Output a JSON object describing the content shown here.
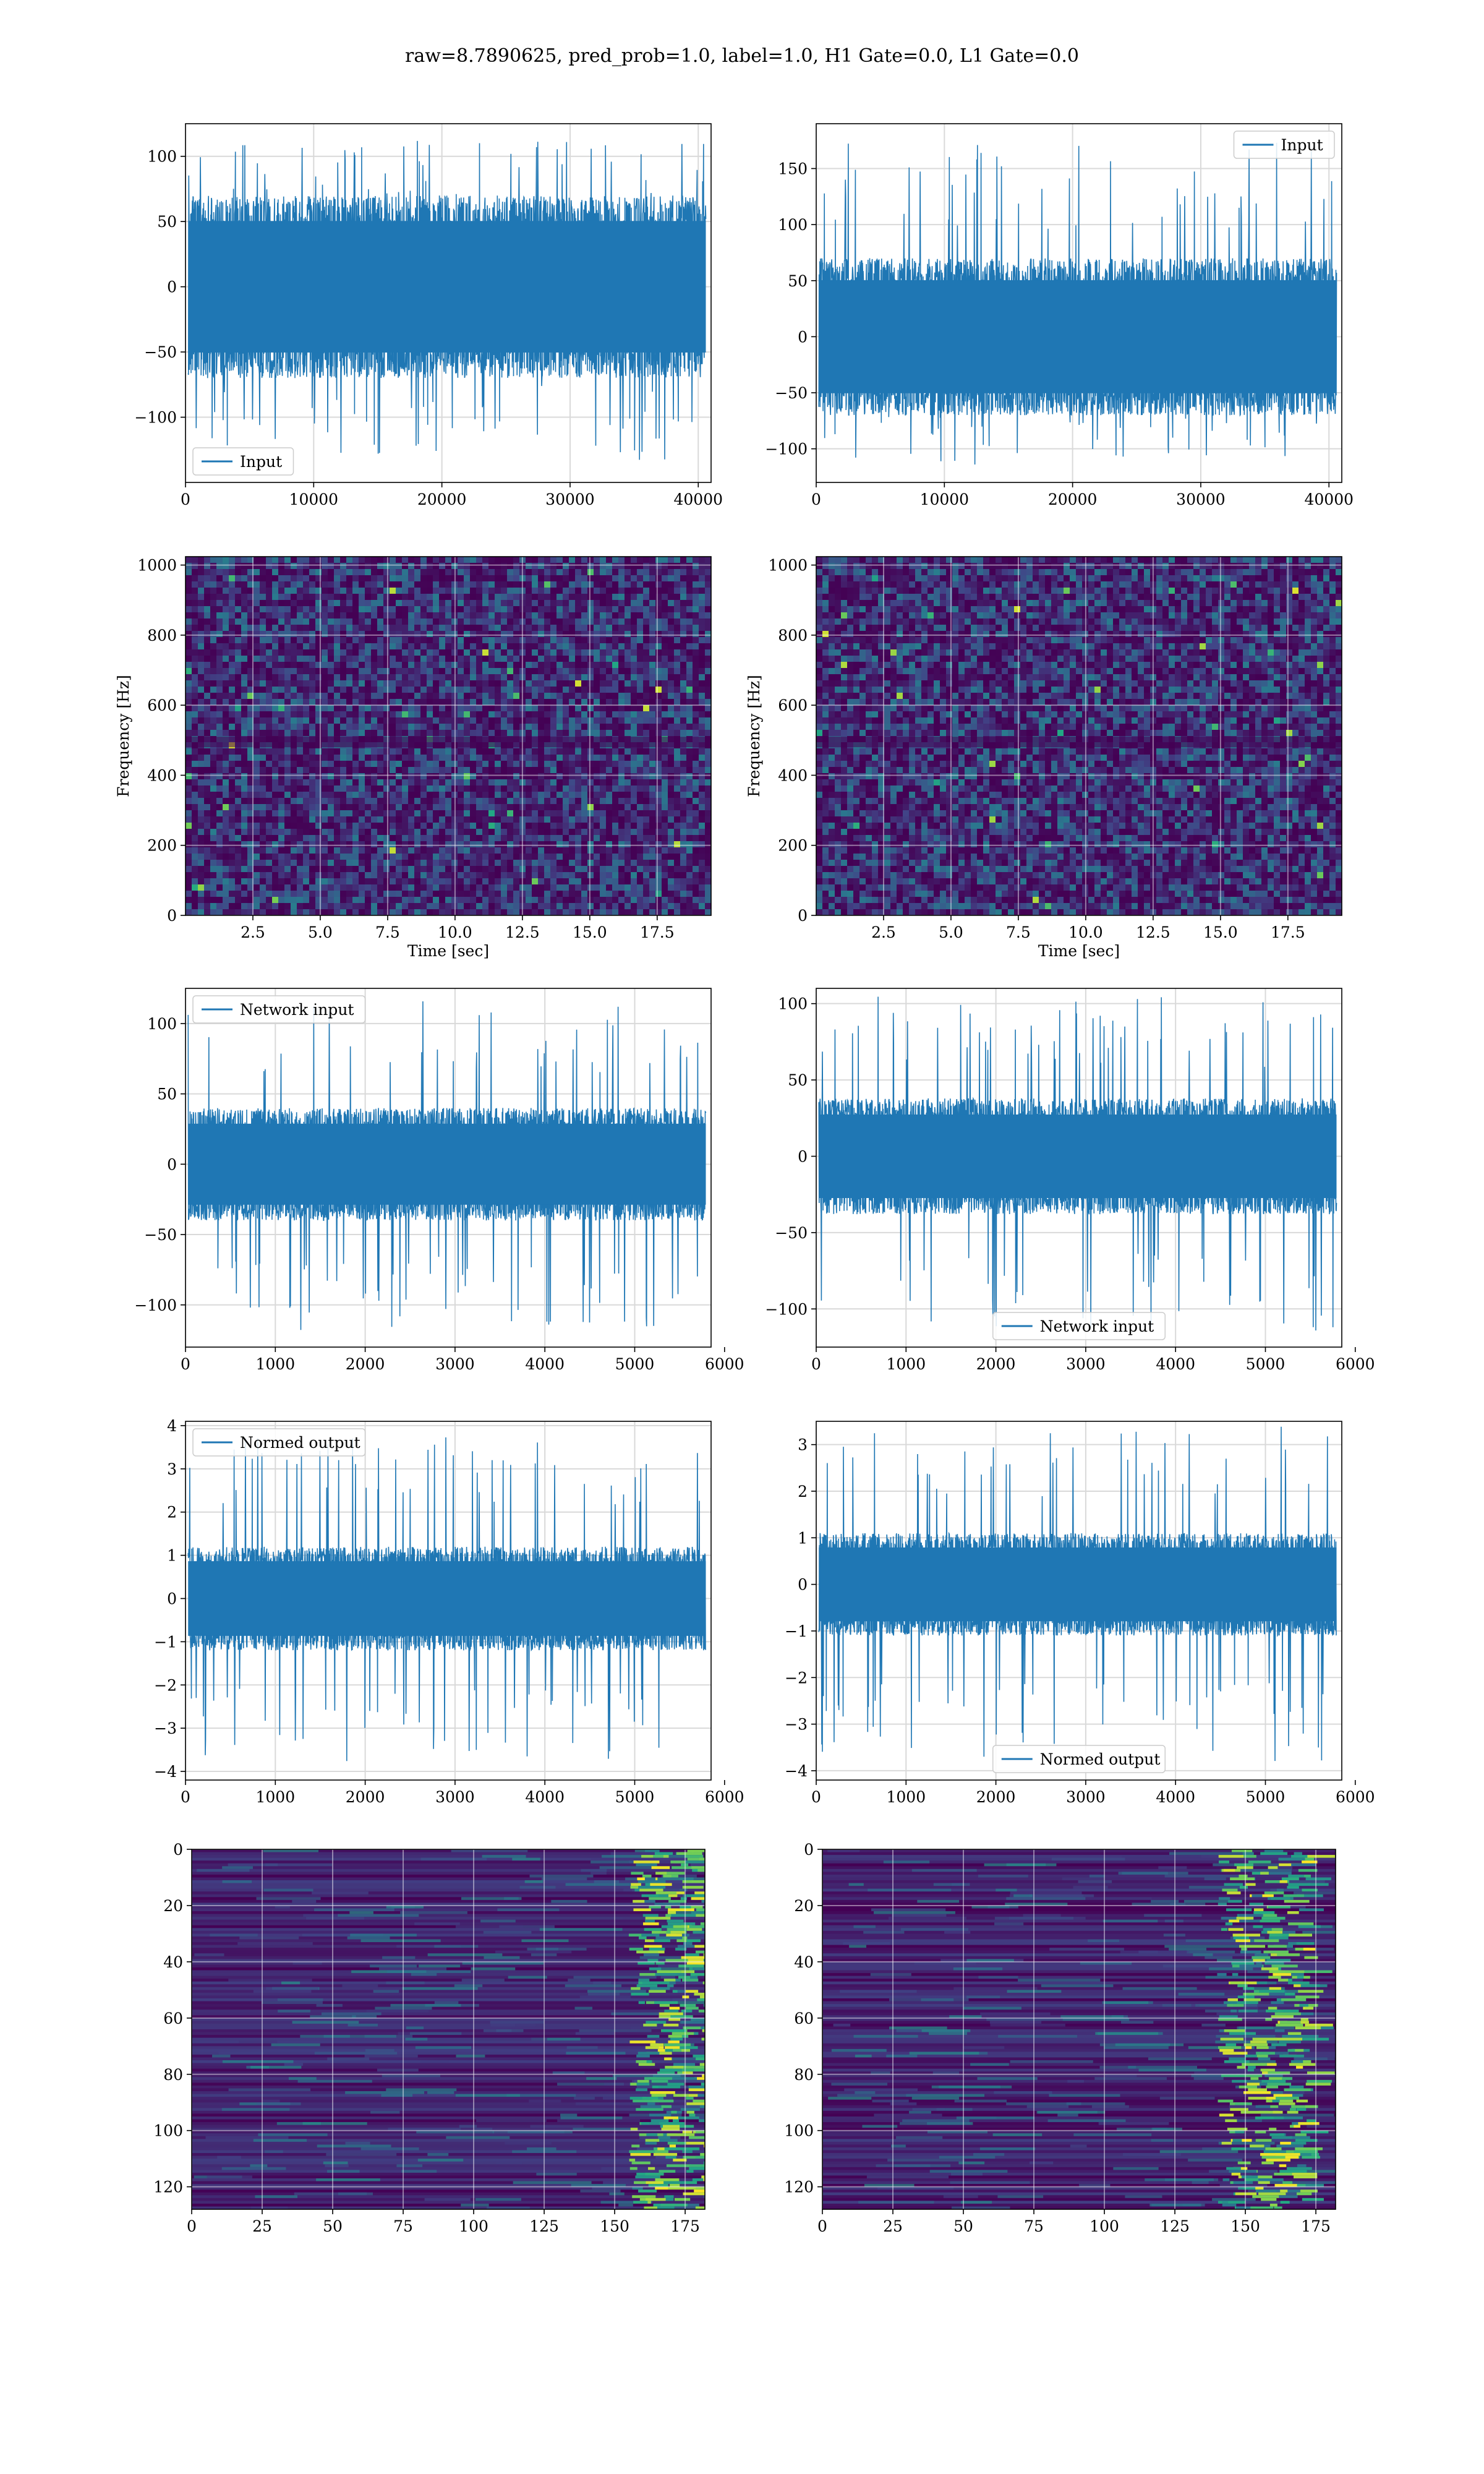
{
  "figure": {
    "suptitle": "raw=8.7890625, pred_prob=1.0, label=1.0, H1 Gate=0.0, L1 Gate=0.0"
  },
  "colors": {
    "line": "#1f77b4",
    "grid": "#d9d9d9",
    "spine": "#000000",
    "viridis_dark": "#440154",
    "viridis_mid": "#21918c",
    "viridis_bright": "#fde725"
  },
  "chart_data": [
    {
      "id": "input-h1",
      "type": "line",
      "x_range": [
        0,
        41000
      ],
      "ylim": [
        -150,
        125
      ],
      "xticks": [
        0,
        10000,
        20000,
        30000,
        40000
      ],
      "xtick_labels": [
        "0",
        "10000",
        "20000",
        "30000",
        "40000"
      ],
      "yticks": [
        -100,
        -50,
        0,
        50,
        100
      ],
      "ytick_labels": [
        "−100",
        "−50",
        "0",
        "50",
        "100"
      ],
      "series": [
        {
          "name": "Input",
          "envelope": [
            -70,
            70
          ],
          "peak_range": [
            -135,
            115
          ]
        }
      ],
      "legend": "lower-left",
      "grid": true,
      "xlabel": "",
      "ylabel": ""
    },
    {
      "id": "input-l1",
      "type": "line",
      "x_range": [
        0,
        41000
      ],
      "ylim": [
        -130,
        190
      ],
      "xticks": [
        0,
        10000,
        20000,
        30000,
        40000
      ],
      "xtick_labels": [
        "0",
        "10000",
        "20000",
        "30000",
        "40000"
      ],
      "yticks": [
        -100,
        -50,
        0,
        50,
        100,
        150
      ],
      "ytick_labels": [
        "−100",
        "−50",
        "0",
        "50",
        "100",
        "150"
      ],
      "series": [
        {
          "name": "Input",
          "envelope": [
            -70,
            70
          ],
          "peak_range": [
            -115,
            175
          ]
        }
      ],
      "legend": "upper-right",
      "grid": true,
      "xlabel": "",
      "ylabel": ""
    },
    {
      "id": "spectrogram-h1",
      "type": "heatmap",
      "x_range": [
        0,
        19.5
      ],
      "ylim": [
        0,
        1024
      ],
      "xticks": [
        2.5,
        5.0,
        7.5,
        10.0,
        12.5,
        15.0,
        17.5
      ],
      "xtick_labels": [
        "2.5",
        "5.0",
        "7.5",
        "10.0",
        "12.5",
        "15.0",
        "17.5"
      ],
      "yticks": [
        0,
        200,
        400,
        600,
        800,
        1000
      ],
      "ytick_labels": [
        "0",
        "200",
        "400",
        "600",
        "800",
        "1000"
      ],
      "colormap": "viridis",
      "grid": true,
      "xlabel": "Time [sec]",
      "ylabel": "Frequency [Hz]"
    },
    {
      "id": "spectrogram-l1",
      "type": "heatmap",
      "x_range": [
        0,
        19.5
      ],
      "ylim": [
        0,
        1024
      ],
      "xticks": [
        2.5,
        5.0,
        7.5,
        10.0,
        12.5,
        15.0,
        17.5
      ],
      "xtick_labels": [
        "2.5",
        "5.0",
        "7.5",
        "10.0",
        "12.5",
        "15.0",
        "17.5"
      ],
      "yticks": [
        0,
        200,
        400,
        600,
        800,
        1000
      ],
      "ytick_labels": [
        "0",
        "200",
        "400",
        "600",
        "800",
        "1000"
      ],
      "colormap": "viridis",
      "grid": true,
      "xlabel": "Time [sec]",
      "ylabel": "Frequency [Hz]"
    },
    {
      "id": "network-input-h1",
      "type": "line",
      "x_range": [
        0,
        5850
      ],
      "ylim": [
        -130,
        125
      ],
      "xticks": [
        0,
        1000,
        2000,
        3000,
        4000,
        5000,
        6000
      ],
      "xtick_labels": [
        "0",
        "1000",
        "2000",
        "3000",
        "4000",
        "5000",
        "6000"
      ],
      "yticks": [
        -100,
        -50,
        0,
        50,
        100
      ],
      "ytick_labels": [
        "−100",
        "−50",
        "0",
        "50",
        "100"
      ],
      "series": [
        {
          "name": "Network input",
          "envelope": [
            -40,
            40
          ],
          "peak_range": [
            -118,
            117
          ]
        }
      ],
      "legend": "upper-left",
      "grid": true,
      "xlabel": "",
      "ylabel": ""
    },
    {
      "id": "network-input-l1",
      "type": "line",
      "x_range": [
        0,
        5850
      ],
      "ylim": [
        -125,
        110
      ],
      "xticks": [
        0,
        1000,
        2000,
        3000,
        4000,
        5000,
        6000
      ],
      "xtick_labels": [
        "0",
        "1000",
        "2000",
        "3000",
        "4000",
        "5000",
        "6000"
      ],
      "yticks": [
        -100,
        -50,
        0,
        50,
        100
      ],
      "ytick_labels": [
        "−100",
        "−50",
        "0",
        "50",
        "100"
      ],
      "series": [
        {
          "name": "Network input",
          "envelope": [
            -38,
            38
          ],
          "peak_range": [
            -115,
            105
          ]
        }
      ],
      "legend": "lower-center",
      "grid": true,
      "xlabel": "",
      "ylabel": ""
    },
    {
      "id": "normed-output-h1",
      "type": "line",
      "x_range": [
        0,
        5850
      ],
      "ylim": [
        -4.2,
        4.1
      ],
      "xticks": [
        0,
        1000,
        2000,
        3000,
        4000,
        5000,
        6000
      ],
      "xtick_labels": [
        "0",
        "1000",
        "2000",
        "3000",
        "4000",
        "5000",
        "6000"
      ],
      "yticks": [
        -4,
        -3,
        -2,
        -1,
        0,
        1,
        2,
        3,
        4
      ],
      "ytick_labels": [
        "−4",
        "−3",
        "−2",
        "−1",
        "0",
        "1",
        "2",
        "3",
        "4"
      ],
      "series": [
        {
          "name": "Normed output",
          "envelope": [
            -1.2,
            1.2
          ],
          "peak_range": [
            -3.8,
            3.8
          ]
        }
      ],
      "legend": "upper-left",
      "grid": true,
      "xlabel": "",
      "ylabel": ""
    },
    {
      "id": "normed-output-l1",
      "type": "line",
      "x_range": [
        0,
        5850
      ],
      "ylim": [
        -4.2,
        3.5
      ],
      "xticks": [
        0,
        1000,
        2000,
        3000,
        4000,
        5000,
        6000
      ],
      "xtick_labels": [
        "0",
        "1000",
        "2000",
        "3000",
        "4000",
        "5000",
        "6000"
      ],
      "yticks": [
        -4,
        -3,
        -2,
        -1,
        0,
        1,
        2,
        3
      ],
      "ytick_labels": [
        "−4",
        "−3",
        "−2",
        "−1",
        "0",
        "1",
        "2",
        "3"
      ],
      "series": [
        {
          "name": "Normed output",
          "envelope": [
            -1.1,
            1.1
          ],
          "peak_range": [
            -3.8,
            3.4
          ]
        }
      ],
      "legend": "lower-center",
      "grid": true,
      "xlabel": "",
      "ylabel": ""
    },
    {
      "id": "feature-map-h1",
      "type": "heatmap",
      "x_range": [
        0,
        182
      ],
      "ylim": [
        128,
        0
      ],
      "xticks": [
        0,
        25,
        50,
        75,
        100,
        125,
        150,
        175
      ],
      "xtick_labels": [
        "0",
        "25",
        "50",
        "75",
        "100",
        "125",
        "150",
        "175"
      ],
      "yticks": [
        0,
        20,
        40,
        60,
        80,
        100,
        120
      ],
      "ytick_labels": [
        "0",
        "20",
        "40",
        "60",
        "80",
        "100",
        "120"
      ],
      "colormap": "viridis",
      "bright_band_x": [
        155,
        182
      ],
      "grid": true,
      "xlabel": "",
      "ylabel": ""
    },
    {
      "id": "feature-map-l1",
      "type": "heatmap",
      "x_range": [
        0,
        182
      ],
      "ylim": [
        128,
        0
      ],
      "xticks": [
        0,
        25,
        50,
        75,
        100,
        125,
        150,
        175
      ],
      "xtick_labels": [
        "0",
        "25",
        "50",
        "75",
        "100",
        "125",
        "150",
        "175"
      ],
      "yticks": [
        0,
        20,
        40,
        60,
        80,
        100,
        120
      ],
      "ytick_labels": [
        "0",
        "20",
        "40",
        "60",
        "80",
        "100",
        "120"
      ],
      "colormap": "viridis",
      "bright_band_x": [
        140,
        172
      ],
      "grid": true,
      "xlabel": "",
      "ylabel": ""
    }
  ]
}
